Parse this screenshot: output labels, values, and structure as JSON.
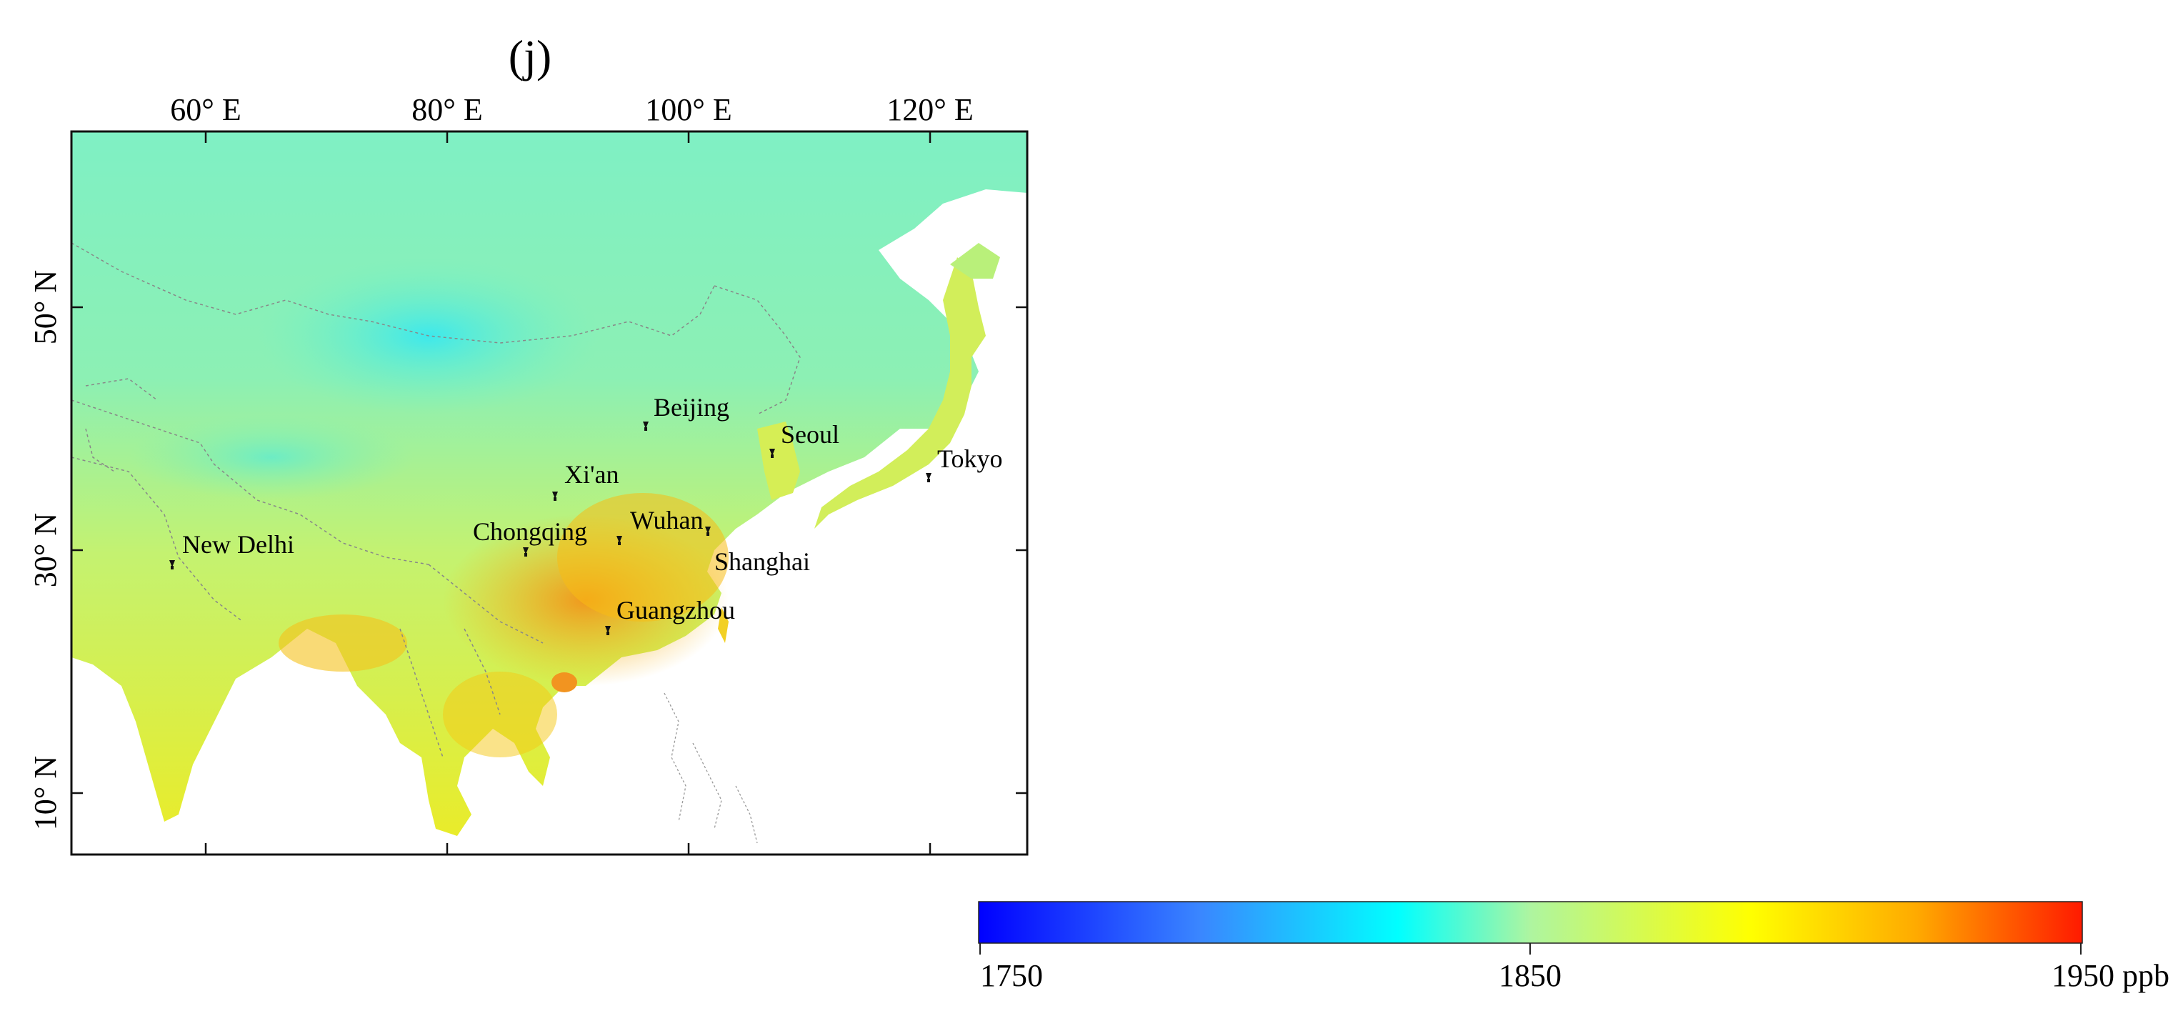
{
  "panel_label": "(j)",
  "map": {
    "top_ticks": [
      "60° E",
      "80° E",
      "100° E",
      "120° E"
    ],
    "left_ticks": [
      "50° N",
      "30° N",
      "10° N"
    ],
    "cities": [
      {
        "name": "Beijing"
      },
      {
        "name": "Seoul"
      },
      {
        "name": "Tokyo"
      },
      {
        "name": "Xi'an"
      },
      {
        "name": "Chongqing"
      },
      {
        "name": "Wuhan"
      },
      {
        "name": "Shanghai"
      },
      {
        "name": "New Delhi"
      },
      {
        "name": "Guangzhou"
      }
    ]
  },
  "colorbar": {
    "ticks": [
      "1750",
      "1850",
      "1950 ppb"
    ],
    "gradient_colors": [
      "#0000ff",
      "#00ffff",
      "#b0f090",
      "#ffff00",
      "#ff0000"
    ]
  }
}
